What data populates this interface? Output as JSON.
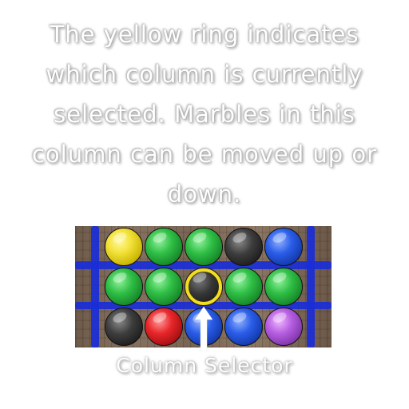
{
  "tutorial": {
    "instruction": "The yellow ring indicates which column is currently selected. Marbles in this column can be moved up or down.",
    "caption": "Column Selector"
  },
  "board": {
    "rows": [
      [
        "yellow",
        "green",
        "green",
        "black",
        "blue"
      ],
      [
        "green",
        "green",
        "black",
        "green",
        "green"
      ],
      [
        "black",
        "red",
        "blue",
        "blue",
        "purple"
      ]
    ],
    "selected_column": 3,
    "colors": {
      "ring": "#f2dd20",
      "grid": "#1a2ed8",
      "arrow": "#ffffff"
    }
  },
  "icons": {
    "arrow": "up-arrow-icon",
    "ring": "selection-ring-icon"
  }
}
